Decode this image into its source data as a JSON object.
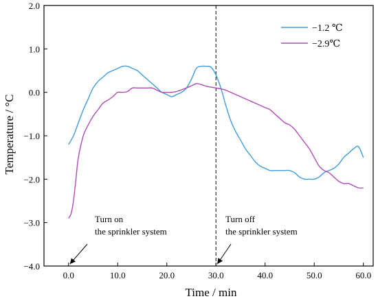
{
  "chart_data": {
    "type": "line",
    "xlabel": "Time / min",
    "ylabel": "Temperature / °C",
    "xlim": [
      -5,
      62
    ],
    "ylim": [
      -4.0,
      2.0
    ],
    "xticks": [
      0,
      10,
      20,
      30,
      40,
      50,
      60
    ],
    "xtick_labels": [
      "0.0",
      "10.0",
      "20.0",
      "30.0",
      "40.0",
      "50.0",
      "60.0"
    ],
    "yticks": [
      2.0,
      1.0,
      0.0,
      -1.0,
      -2.0,
      -3.0,
      -4.0
    ],
    "ytick_labels": [
      "2.0",
      "1.0",
      "0.0",
      "−1.0",
      "−2.0",
      "−3.0",
      "−4.0"
    ],
    "grid": false,
    "legend_position": "top-right",
    "vline_x": 30,
    "series": [
      {
        "name": "−1.2  ℃",
        "color": "#3e9be0",
        "x": [
          0,
          1,
          2,
          3,
          4,
          5,
          6,
          7,
          8,
          9,
          10,
          11,
          12,
          13,
          14,
          15,
          16,
          17,
          18,
          19,
          20,
          21,
          22,
          23,
          24,
          25,
          26,
          27,
          28,
          29,
          30,
          31,
          32,
          33,
          34,
          35,
          36,
          37,
          38,
          39,
          40,
          41,
          42,
          43,
          44,
          45,
          46,
          47,
          48,
          49,
          50,
          51,
          52,
          53,
          54,
          55,
          56,
          57,
          58,
          59,
          60
        ],
        "y": [
          -1.2,
          -1.0,
          -0.7,
          -0.4,
          -0.15,
          0.1,
          0.25,
          0.35,
          0.45,
          0.5,
          0.55,
          0.6,
          0.6,
          0.55,
          0.5,
          0.4,
          0.3,
          0.2,
          0.1,
          0.0,
          -0.05,
          -0.1,
          -0.05,
          0.0,
          0.1,
          0.3,
          0.55,
          0.6,
          0.6,
          0.58,
          0.4,
          0.1,
          -0.3,
          -0.65,
          -0.9,
          -1.1,
          -1.3,
          -1.45,
          -1.6,
          -1.7,
          -1.75,
          -1.8,
          -1.8,
          -1.8,
          -1.8,
          -1.8,
          -1.85,
          -1.95,
          -2.0,
          -2.0,
          -2.0,
          -1.95,
          -1.85,
          -1.8,
          -1.75,
          -1.65,
          -1.5,
          -1.4,
          -1.3,
          -1.25,
          -1.5
        ]
      },
      {
        "name": "−2.9℃",
        "color": "#b04ab8",
        "x": [
          0,
          0.5,
          1,
          1.5,
          2,
          3,
          4,
          5,
          6,
          7,
          8,
          9,
          10,
          11,
          12,
          13,
          14,
          15,
          16,
          17,
          18,
          19,
          20,
          21,
          22,
          23,
          24,
          25,
          26,
          27,
          28,
          29,
          30,
          31,
          32,
          33,
          34,
          35,
          36,
          37,
          38,
          39,
          40,
          41,
          42,
          43,
          44,
          45,
          46,
          47,
          48,
          49,
          50,
          51,
          52,
          53,
          54,
          55,
          56,
          57,
          58,
          59,
          60
        ],
        "y": [
          -2.9,
          -2.8,
          -2.5,
          -2.0,
          -1.5,
          -1.0,
          -0.75,
          -0.55,
          -0.4,
          -0.25,
          -0.18,
          -0.1,
          0.0,
          0.0,
          0.02,
          0.1,
          0.1,
          0.1,
          0.1,
          0.1,
          0.05,
          0.0,
          0.0,
          0.0,
          0.02,
          0.06,
          0.1,
          0.15,
          0.2,
          0.18,
          0.14,
          0.12,
          0.1,
          0.08,
          0.05,
          0.0,
          -0.05,
          -0.1,
          -0.15,
          -0.2,
          -0.25,
          -0.3,
          -0.35,
          -0.4,
          -0.5,
          -0.6,
          -0.7,
          -0.75,
          -0.85,
          -1.0,
          -1.15,
          -1.3,
          -1.5,
          -1.7,
          -1.8,
          -1.85,
          -1.95,
          -2.05,
          -2.1,
          -2.1,
          -2.15,
          -2.2,
          -2.2
        ]
      }
    ],
    "annotations": [
      {
        "lines": [
          "Turn on",
          "the sprinkler system"
        ],
        "x": 0,
        "y": -4.0
      },
      {
        "lines": [
          "Turn off",
          "the sprinkler system"
        ],
        "x": 30,
        "y": -4.0
      }
    ]
  }
}
